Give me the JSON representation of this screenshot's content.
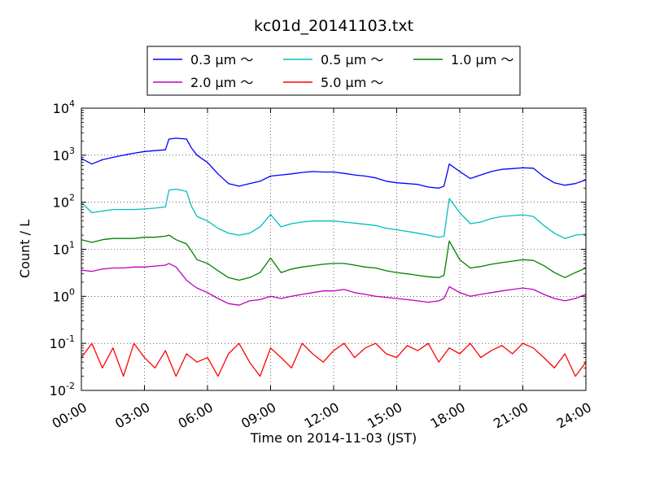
{
  "chart_data": {
    "type": "line",
    "title": "kc01d_20141103.txt",
    "xlabel": "Time on 2014-11-03 (JST)",
    "ylabel": "Count / L",
    "yscale": "log",
    "ylim": [
      0.01,
      10000
    ],
    "xlim": [
      "00:00",
      "24:00"
    ],
    "x_ticks": [
      "00:00",
      "03:00",
      "06:00",
      "09:00",
      "12:00",
      "15:00",
      "18:00",
      "21:00",
      "24:00"
    ],
    "y_ticks": [
      {
        "base": "10",
        "exp": "-2",
        "value": 0.01
      },
      {
        "base": "10",
        "exp": "-1",
        "value": 0.1
      },
      {
        "base": "10",
        "exp": "0",
        "value": 1
      },
      {
        "base": "10",
        "exp": "1",
        "value": 10
      },
      {
        "base": "10",
        "exp": "2",
        "value": 100
      },
      {
        "base": "10",
        "exp": "3",
        "value": 1000
      },
      {
        "base": "10",
        "exp": "4",
        "value": 10000
      }
    ],
    "grid": true,
    "legend_position": "top-center",
    "series": [
      {
        "name": "0.3 μm ～",
        "color": "#0000ff",
        "x": [
          "00:00",
          "00:30",
          "01:00",
          "01:30",
          "02:00",
          "02:30",
          "03:00",
          "03:30",
          "04:00",
          "04:10",
          "04:30",
          "05:00",
          "05:15",
          "05:30",
          "06:00",
          "06:30",
          "07:00",
          "07:30",
          "08:00",
          "08:30",
          "09:00",
          "09:30",
          "10:00",
          "10:30",
          "11:00",
          "11:30",
          "12:00",
          "12:30",
          "13:00",
          "13:30",
          "14:00",
          "14:30",
          "15:00",
          "15:30",
          "16:00",
          "16:30",
          "17:00",
          "17:15",
          "17:30",
          "18:00",
          "18:30",
          "19:00",
          "19:30",
          "20:00",
          "20:30",
          "21:00",
          "21:30",
          "22:00",
          "22:30",
          "23:00",
          "23:30",
          "24:00"
        ],
        "y": [
          850,
          650,
          800,
          900,
          1000,
          1100,
          1200,
          1250,
          1300,
          2200,
          2300,
          2200,
          1400,
          1000,
          700,
          400,
          250,
          220,
          250,
          280,
          360,
          380,
          400,
          430,
          450,
          440,
          440,
          410,
          380,
          360,
          330,
          280,
          260,
          250,
          240,
          210,
          200,
          220,
          650,
          450,
          320,
          380,
          450,
          500,
          520,
          540,
          530,
          350,
          260,
          230,
          250,
          300
        ]
      },
      {
        "name": "0.5 μm ～",
        "color": "#00bfbf",
        "x": [
          "00:00",
          "00:30",
          "01:00",
          "01:30",
          "02:00",
          "02:30",
          "03:00",
          "03:30",
          "04:00",
          "04:10",
          "04:30",
          "05:00",
          "05:15",
          "05:30",
          "06:00",
          "06:30",
          "07:00",
          "07:30",
          "08:00",
          "08:30",
          "09:00",
          "09:30",
          "10:00",
          "10:30",
          "11:00",
          "11:30",
          "12:00",
          "12:30",
          "13:00",
          "13:30",
          "14:00",
          "14:30",
          "15:00",
          "15:30",
          "16:00",
          "16:30",
          "17:00",
          "17:15",
          "17:30",
          "18:00",
          "18:30",
          "19:00",
          "19:30",
          "20:00",
          "20:30",
          "21:00",
          "21:30",
          "22:00",
          "22:30",
          "23:00",
          "23:30",
          "24:00"
        ],
        "y": [
          100,
          60,
          65,
          70,
          70,
          70,
          72,
          75,
          80,
          180,
          190,
          170,
          80,
          50,
          40,
          28,
          22,
          20,
          22,
          30,
          55,
          30,
          35,
          38,
          40,
          40,
          40,
          38,
          36,
          34,
          32,
          28,
          26,
          24,
          22,
          20,
          18,
          19,
          120,
          60,
          35,
          38,
          45,
          50,
          52,
          54,
          50,
          32,
          22,
          17,
          20,
          21
        ]
      },
      {
        "name": "1.0 μm ～",
        "color": "#008000",
        "x": [
          "00:00",
          "00:30",
          "01:00",
          "01:30",
          "02:00",
          "02:30",
          "03:00",
          "03:30",
          "04:00",
          "04:10",
          "04:30",
          "05:00",
          "05:15",
          "05:30",
          "06:00",
          "06:30",
          "07:00",
          "07:30",
          "08:00",
          "08:30",
          "09:00",
          "09:30",
          "10:00",
          "10:30",
          "11:00",
          "11:30",
          "12:00",
          "12:30",
          "13:00",
          "13:30",
          "14:00",
          "14:30",
          "15:00",
          "15:30",
          "16:00",
          "16:30",
          "17:00",
          "17:15",
          "17:30",
          "18:00",
          "18:30",
          "19:00",
          "19:30",
          "20:00",
          "20:30",
          "21:00",
          "21:30",
          "22:00",
          "22:30",
          "23:00",
          "23:30",
          "24:00"
        ],
        "y": [
          16,
          14,
          16,
          17,
          17,
          17,
          18,
          18,
          19,
          20,
          16,
          13,
          9,
          6,
          5,
          3.5,
          2.5,
          2.2,
          2.5,
          3.2,
          6.5,
          3.2,
          3.8,
          4.2,
          4.5,
          4.8,
          5,
          5,
          4.6,
          4.2,
          4,
          3.5,
          3.2,
          3,
          2.8,
          2.6,
          2.5,
          2.8,
          15,
          6,
          4,
          4.3,
          4.8,
          5.2,
          5.6,
          6,
          5.8,
          4.5,
          3.2,
          2.5,
          3.2,
          4
        ]
      },
      {
        "name": "2.0 μm ～",
        "color": "#bf00bf",
        "x": [
          "00:00",
          "00:30",
          "01:00",
          "01:30",
          "02:00",
          "02:30",
          "03:00",
          "03:30",
          "04:00",
          "04:10",
          "04:30",
          "05:00",
          "05:15",
          "05:30",
          "06:00",
          "06:30",
          "07:00",
          "07:30",
          "08:00",
          "08:30",
          "09:00",
          "09:30",
          "10:00",
          "10:30",
          "11:00",
          "11:30",
          "12:00",
          "12:30",
          "13:00",
          "13:30",
          "14:00",
          "14:30",
          "15:00",
          "15:30",
          "16:00",
          "16:30",
          "17:00",
          "17:15",
          "17:30",
          "18:00",
          "18:30",
          "19:00",
          "19:30",
          "20:00",
          "20:30",
          "21:00",
          "21:30",
          "22:00",
          "22:30",
          "23:00",
          "23:30",
          "24:00"
        ],
        "y": [
          3.6,
          3.4,
          3.8,
          4,
          4,
          4.2,
          4.2,
          4.4,
          4.6,
          5,
          4.2,
          2.2,
          1.8,
          1.5,
          1.2,
          0.9,
          0.7,
          0.65,
          0.8,
          0.85,
          1.0,
          0.9,
          1.0,
          1.1,
          1.2,
          1.3,
          1.3,
          1.4,
          1.2,
          1.1,
          1.0,
          0.95,
          0.9,
          0.85,
          0.8,
          0.75,
          0.8,
          0.9,
          1.6,
          1.2,
          1.0,
          1.1,
          1.2,
          1.3,
          1.4,
          1.5,
          1.4,
          1.1,
          0.9,
          0.8,
          0.9,
          1.1
        ]
      },
      {
        "name": "5.0 μm ～",
        "color": "#ff0000",
        "x": [
          "00:00",
          "00:30",
          "01:00",
          "01:30",
          "02:00",
          "02:30",
          "03:00",
          "03:30",
          "04:00",
          "04:30",
          "05:00",
          "05:30",
          "06:00",
          "06:30",
          "07:00",
          "07:30",
          "08:00",
          "08:30",
          "09:00",
          "09:30",
          "10:00",
          "10:30",
          "11:00",
          "11:30",
          "12:00",
          "12:30",
          "13:00",
          "13:30",
          "14:00",
          "14:30",
          "15:00",
          "15:30",
          "16:00",
          "16:30",
          "17:00",
          "17:30",
          "18:00",
          "18:30",
          "19:00",
          "19:30",
          "20:00",
          "20:30",
          "21:00",
          "21:30",
          "22:00",
          "22:30",
          "23:00",
          "23:30",
          "24:00"
        ],
        "y": [
          0.05,
          0.1,
          0.03,
          0.08,
          0.02,
          0.1,
          0.05,
          0.03,
          0.07,
          0.02,
          0.06,
          0.04,
          0.05,
          0.02,
          0.06,
          0.1,
          0.04,
          0.02,
          0.08,
          0.05,
          0.03,
          0.1,
          0.06,
          0.04,
          0.07,
          0.1,
          0.05,
          0.08,
          0.1,
          0.06,
          0.05,
          0.09,
          0.07,
          0.1,
          0.04,
          0.08,
          0.06,
          0.1,
          0.05,
          0.07,
          0.09,
          0.06,
          0.1,
          0.08,
          0.05,
          0.03,
          0.06,
          0.02,
          0.04
        ]
      }
    ]
  }
}
